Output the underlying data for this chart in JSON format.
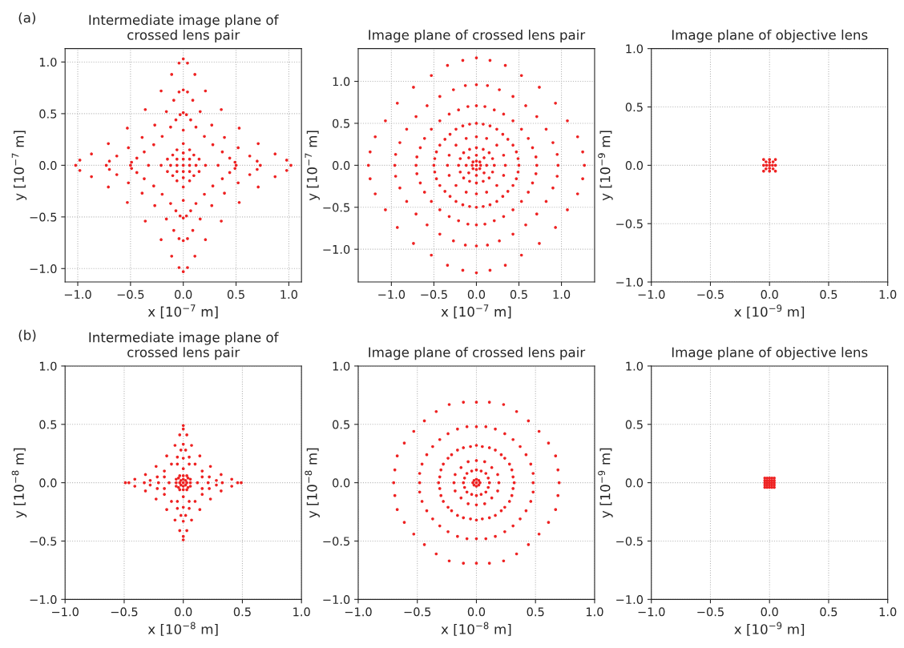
{
  "chart_data": [
    {
      "type": "scatter",
      "title": "Intermediate image plane of\ncrossed lens pair",
      "xlabel": "x [10$^{−7}$ m]",
      "ylabel": "y [10$^{−7}$ m]",
      "annotations": [
        "(a)"
      ],
      "grid": true,
      "marker": "circle",
      "xlim": [
        -1.12,
        1.12
      ],
      "ylim": [
        -1.13,
        1.13
      ],
      "xticks": [
        {
          "value": -1,
          "label": "−1.0"
        },
        {
          "value": -0.5,
          "label": "−0.5"
        },
        {
          "value": 0,
          "label": "0.0"
        },
        {
          "value": 0.5,
          "label": "0.5"
        },
        {
          "value": 1,
          "label": "1.0"
        }
      ],
      "yticks": [
        {
          "value": -1,
          "label": "−1.0"
        },
        {
          "value": -0.5,
          "label": "−0.5"
        },
        {
          "value": 0,
          "label": "0.0"
        },
        {
          "value": 0.5,
          "label": "0.5"
        },
        {
          "value": 1,
          "label": "1.0"
        }
      ],
      "series": [
        {
          "color": "#ee2222",
          "x": [
            0.04,
            0.11,
            0.21,
            0.04,
            0.09,
            0.36,
            0.16,
            0.03,
            0.27,
            0.07,
            0.53,
            0.12,
            0.39,
            0.2,
            0.71,
            0.52,
            0.28,
            0.87,
            0.63,
            0.98,
            0.7,
            0.49,
            0.44,
            0.37,
            0.1,
            0.06,
            0.15,
            0.06,
            -0.04,
            -0.11,
            -0.21,
            -0.04,
            -0.09,
            -0.36,
            -0.16,
            -0.03,
            -0.27,
            -0.07,
            -0.53,
            -0.12,
            -0.39,
            -0.2,
            -0.71,
            -0.52,
            -0.28,
            -0.87,
            -0.63,
            -0.98,
            -0.7,
            -0.49,
            -0.44,
            -0.37,
            -0.1,
            -0.06,
            -0.15,
            -0.06,
            -0.04,
            -0.11,
            -0.21,
            -0.04,
            -0.09,
            -0.36,
            -0.16,
            -0.03,
            -0.27,
            -0.07,
            -0.53,
            -0.12,
            -0.39,
            -0.2,
            -0.71,
            -0.52,
            -0.28,
            -0.87,
            -0.63,
            -0.98,
            -0.7,
            -0.49,
            -0.44,
            -0.37,
            -0.1,
            -0.06,
            -0.15,
            -0.06,
            0.04,
            0.11,
            0.21,
            0.04,
            0.09,
            0.36,
            0.16,
            0.03,
            0.27,
            0.07,
            0.53,
            0.12,
            0.39,
            0.2,
            0.71,
            0.52,
            0.28,
            0.87,
            0.63,
            0.98,
            0.7,
            0.49,
            0.44,
            0.37,
            0.1,
            0.06,
            0.15,
            0.06,
            0,
            0,
            0,
            0,
            0,
            0,
            0,
            1.02,
            0.73,
            0.5,
            0.33,
            0.21,
            0.12,
            0.06,
            0,
            0,
            0,
            0,
            0,
            0,
            0,
            -1.02,
            -0.73,
            -0.5,
            -0.33,
            -0.21,
            -0.12,
            -0.06,
            0
          ],
          "values": [
            0.99,
            0.88,
            0.72,
            0.71,
            0.63,
            0.54,
            0.52,
            0.49,
            0.39,
            0.44,
            0.36,
            0.37,
            0.27,
            0.28,
            0.21,
            0.17,
            0.2,
            0.11,
            0.09,
            0.05,
            0.04,
            0.03,
            0.07,
            0.13,
            0.1,
            0.06,
            0.06,
            0.15,
            0.99,
            0.88,
            0.72,
            0.71,
            0.63,
            0.54,
            0.52,
            0.49,
            0.39,
            0.44,
            0.36,
            0.37,
            0.27,
            0.28,
            0.21,
            0.17,
            0.2,
            0.11,
            0.09,
            0.05,
            0.04,
            0.03,
            0.07,
            0.13,
            0.1,
            0.06,
            0.06,
            0.15,
            -0.99,
            -0.88,
            -0.72,
            -0.71,
            -0.63,
            -0.54,
            -0.52,
            -0.49,
            -0.39,
            -0.44,
            -0.36,
            -0.37,
            -0.27,
            -0.28,
            -0.21,
            -0.17,
            -0.2,
            -0.11,
            -0.09,
            -0.05,
            -0.04,
            -0.03,
            -0.07,
            -0.13,
            -0.1,
            -0.06,
            -0.06,
            -0.15,
            -0.99,
            -0.88,
            -0.72,
            -0.71,
            -0.63,
            -0.54,
            -0.52,
            -0.49,
            -0.39,
            -0.44,
            -0.36,
            -0.37,
            -0.27,
            -0.28,
            -0.21,
            -0.17,
            -0.2,
            -0.11,
            -0.09,
            -0.05,
            -0.04,
            -0.03,
            -0.07,
            -0.13,
            -0.1,
            -0.06,
            -0.06,
            -0.15,
            1.03,
            0.73,
            0.51,
            0.34,
            0.21,
            0.12,
            0.06,
            0,
            0,
            0,
            0,
            0,
            0,
            0,
            -1.03,
            -0.73,
            -0.51,
            -0.34,
            -0.21,
            -0.12,
            -0.06,
            0,
            0,
            0,
            0,
            0,
            0,
            0,
            0
          ]
        }
      ]
    },
    {
      "type": "scatter",
      "title": "Image plane of crossed lens pair",
      "xlabel": "x [10$^{−7}$ m]",
      "ylabel": "y [10$^{−7}$ m]",
      "grid": true,
      "marker": "circle",
      "xlim": [
        -1.39,
        1.39
      ],
      "ylim": [
        -1.39,
        1.39
      ],
      "xticks": [
        {
          "value": -1,
          "label": "−1.0"
        },
        {
          "value": -0.5,
          "label": "−0.5"
        },
        {
          "value": 0,
          "label": "0.0"
        },
        {
          "value": 0.5,
          "label": "0.5"
        },
        {
          "value": 1,
          "label": "1.0"
        }
      ],
      "yticks": [
        {
          "value": -1,
          "label": "−1.0"
        },
        {
          "value": -0.5,
          "label": "−0.5"
        },
        {
          "value": 0,
          "label": "0.0"
        },
        {
          "value": 0.5,
          "label": "0.5"
        },
        {
          "value": 1,
          "label": "1.0"
        }
      ],
      "series": [
        {
          "color": "#ee2222",
          "x": [
            0.16,
            0.34,
            0.53,
            0.74,
            0.93,
            1.07,
            1.19,
            1.25,
            0.13,
            0.27,
            0.43,
            0.58,
            0.71,
            0.82,
            0.9,
            0.95,
            0.1,
            0.21,
            0.32,
            0.43,
            0.53,
            0.61,
            0.66,
            0.7,
            0.08,
            0.16,
            0.24,
            0.31,
            0.37,
            0.43,
            0.47,
            0.49,
            0.12,
            0.24,
            0.32,
            0.08,
            0.15,
            0.19,
            0.09,
            0.04,
            -0.16,
            -0.34,
            -0.53,
            -0.74,
            -0.93,
            -1.07,
            -1.19,
            -1.25,
            -0.13,
            -0.27,
            -0.43,
            -0.58,
            -0.71,
            -0.82,
            -0.9,
            -0.95,
            -0.1,
            -0.21,
            -0.32,
            -0.43,
            -0.53,
            -0.61,
            -0.66,
            -0.7,
            -0.08,
            -0.16,
            -0.24,
            -0.31,
            -0.37,
            -0.43,
            -0.47,
            -0.49,
            -0.12,
            -0.24,
            -0.32,
            -0.08,
            -0.15,
            -0.19,
            -0.09,
            -0.04,
            -0.16,
            -0.34,
            -0.53,
            -0.74,
            -0.93,
            -1.07,
            -1.19,
            -1.25,
            -0.13,
            -0.27,
            -0.43,
            -0.58,
            -0.71,
            -0.82,
            -0.9,
            -0.95,
            -0.1,
            -0.21,
            -0.32,
            -0.43,
            -0.53,
            -0.61,
            -0.66,
            -0.7,
            -0.08,
            -0.16,
            -0.24,
            -0.31,
            -0.37,
            -0.43,
            -0.47,
            -0.49,
            -0.12,
            -0.24,
            -0.32,
            -0.08,
            -0.15,
            -0.19,
            -0.09,
            -0.04,
            0.16,
            0.34,
            0.53,
            0.74,
            0.93,
            1.07,
            1.19,
            1.25,
            0.13,
            0.27,
            0.43,
            0.58,
            0.71,
            0.82,
            0.9,
            0.95,
            0.1,
            0.21,
            0.32,
            0.43,
            0.53,
            0.61,
            0.66,
            0.7,
            0.08,
            0.16,
            0.24,
            0.31,
            0.37,
            0.43,
            0.47,
            0.49,
            0.12,
            0.24,
            0.32,
            0.08,
            0.15,
            0.19,
            0.09,
            0.04,
            0,
            0,
            0,
            0,
            0,
            0,
            0,
            0,
            1.27,
            0.96,
            0.71,
            0.5,
            0.34,
            0.21,
            0.12,
            0.05,
            0,
            0,
            0,
            0,
            0,
            0,
            0,
            0,
            -1.27,
            -0.96,
            -0.71,
            -0.5,
            -0.34,
            -0.21,
            -0.12,
            -0.05,
            0
          ],
          "values": [
            1.25,
            1.19,
            1.07,
            0.93,
            0.74,
            0.53,
            0.34,
            0.16,
            0.95,
            0.9,
            0.82,
            0.71,
            0.58,
            0.43,
            0.27,
            0.13,
            0.7,
            0.66,
            0.61,
            0.53,
            0.43,
            0.32,
            0.21,
            0.1,
            0.49,
            0.47,
            0.43,
            0.37,
            0.31,
            0.24,
            0.16,
            0.08,
            0.32,
            0.24,
            0.12,
            0.19,
            0.15,
            0.08,
            0.09,
            0.04,
            1.25,
            1.19,
            1.07,
            0.93,
            0.74,
            0.53,
            0.34,
            0.16,
            0.95,
            0.9,
            0.82,
            0.71,
            0.58,
            0.43,
            0.27,
            0.13,
            0.7,
            0.66,
            0.61,
            0.53,
            0.43,
            0.32,
            0.21,
            0.1,
            0.49,
            0.47,
            0.43,
            0.37,
            0.31,
            0.24,
            0.16,
            0.08,
            0.32,
            0.24,
            0.12,
            0.19,
            0.15,
            0.08,
            0.09,
            0.04,
            -1.25,
            -1.19,
            -1.07,
            -0.93,
            -0.74,
            -0.53,
            -0.34,
            -0.16,
            -0.95,
            -0.9,
            -0.82,
            -0.71,
            -0.58,
            -0.43,
            -0.27,
            -0.13,
            -0.7,
            -0.66,
            -0.61,
            -0.53,
            -0.43,
            -0.32,
            -0.21,
            -0.1,
            -0.49,
            -0.47,
            -0.43,
            -0.37,
            -0.31,
            -0.24,
            -0.16,
            -0.08,
            -0.32,
            -0.24,
            -0.12,
            -0.19,
            -0.15,
            -0.08,
            -0.09,
            -0.04,
            -1.25,
            -1.19,
            -1.07,
            -0.93,
            -0.74,
            -0.53,
            -0.34,
            -0.16,
            -0.95,
            -0.9,
            -0.82,
            -0.71,
            -0.58,
            -0.43,
            -0.27,
            -0.13,
            -0.7,
            -0.66,
            -0.61,
            -0.53,
            -0.43,
            -0.32,
            -0.21,
            -0.1,
            -0.49,
            -0.47,
            -0.43,
            -0.37,
            -0.31,
            -0.24,
            -0.16,
            -0.08,
            -0.32,
            -0.24,
            -0.12,
            -0.19,
            -0.15,
            -0.08,
            -0.09,
            -0.04,
            1.28,
            0.96,
            0.71,
            0.5,
            0.34,
            0.21,
            0.12,
            0.05,
            0,
            0,
            0,
            0,
            0,
            0,
            0,
            0,
            -1.28,
            -0.96,
            -0.71,
            -0.5,
            -0.34,
            -0.21,
            -0.12,
            -0.05,
            0,
            0,
            0,
            0,
            0,
            0,
            0,
            0,
            0
          ]
        }
      ]
    },
    {
      "type": "scatter",
      "title": "Image plane of objective lens",
      "xlabel": "x [10$^{−9}$ m]",
      "ylabel": "y [10$^{−9}$ m]",
      "grid": true,
      "marker": "circle",
      "xlim": [
        -1,
        1
      ],
      "ylim": [
        -1,
        1
      ],
      "xticks": [
        {
          "value": -1,
          "label": "−1.0"
        },
        {
          "value": -0.5,
          "label": "−0.5"
        },
        {
          "value": 0,
          "label": "0.0"
        },
        {
          "value": 0.5,
          "label": "0.5"
        },
        {
          "value": 1,
          "label": "1.0"
        }
      ],
      "yticks": [
        {
          "value": -1,
          "label": "−1.0"
        },
        {
          "value": -0.5,
          "label": "−0.5"
        },
        {
          "value": 0,
          "label": "0.0"
        },
        {
          "value": 0.5,
          "label": "0.5"
        },
        {
          "value": 1,
          "label": "1.0"
        }
      ],
      "series": [
        {
          "color": "#ee2222",
          "x": [
            0.05,
            -0.05,
            -0.05,
            0.05,
            0.03,
            -0.03,
            -0.03,
            0.03,
            0,
            0,
            0.05,
            -0.05,
            0,
            0,
            0,
            0.025,
            -0.025
          ],
          "values": [
            0.05,
            0.05,
            -0.05,
            -0.05,
            0.03,
            0.03,
            -0.03,
            -0.03,
            0.05,
            -0.05,
            0,
            0,
            0,
            0.025,
            -0.025,
            0,
            0
          ]
        }
      ]
    },
    {
      "type": "scatter",
      "title": "Intermediate image plane of\ncrossed lens pair",
      "xlabel": "x [10$^{−8}$ m]",
      "ylabel": "y [10$^{−8}$ m]",
      "annotations": [
        "(b)"
      ],
      "grid": true,
      "marker": "circle",
      "xlim": [
        -1,
        1
      ],
      "ylim": [
        -1,
        1
      ],
      "xticks": [
        {
          "value": -1,
          "label": "−1.0"
        },
        {
          "value": -0.5,
          "label": "−0.5"
        },
        {
          "value": 0,
          "label": "0.0"
        },
        {
          "value": 0.5,
          "label": "0.5"
        },
        {
          "value": 1,
          "label": "1.0"
        }
      ],
      "yticks": [
        {
          "value": -1,
          "label": "−1.0"
        },
        {
          "value": -0.5,
          "label": "−0.5"
        },
        {
          "value": 0,
          "label": "0.0"
        },
        {
          "value": 0.5,
          "label": "0.5"
        },
        {
          "value": 1,
          "label": "1.0"
        }
      ],
      "series": [
        {
          "color": "#ee2222",
          "x": [
            0.03,
            0.07,
            0.02,
            0.14,
            0.05,
            0.23,
            0.1,
            0.32,
            0.16,
            0.41,
            0.28,
            0.16,
            0.06,
            0.03,
            0.04,
            0.02,
            0.22,
            0.05,
            -0.03,
            -0.07,
            -0.02,
            -0.14,
            -0.05,
            -0.23,
            -0.1,
            -0.32,
            -0.16,
            -0.41,
            -0.28,
            -0.16,
            -0.06,
            -0.03,
            -0.04,
            -0.02,
            -0.22,
            -0.05,
            -0.03,
            -0.07,
            -0.02,
            -0.14,
            -0.05,
            -0.23,
            -0.1,
            -0.32,
            -0.16,
            -0.41,
            -0.28,
            -0.16,
            -0.06,
            -0.03,
            -0.04,
            -0.02,
            -0.22,
            -0.05,
            0.03,
            0.07,
            0.02,
            0.14,
            0.05,
            0.23,
            0.1,
            0.32,
            0.16,
            0.41,
            0.28,
            0.16,
            0.06,
            0.03,
            0.04,
            0.02,
            0.22,
            0.05,
            0,
            0,
            0,
            0,
            0,
            0,
            0,
            0.49,
            0.46,
            0.33,
            0.21,
            0.12,
            0.06,
            0.03,
            0,
            0,
            0,
            0,
            0,
            0,
            0,
            -0.49,
            -0.46,
            -0.33,
            -0.21,
            -0.12,
            -0.06,
            -0.03,
            0
          ],
          "values": [
            0.41,
            0.32,
            0.28,
            0.23,
            0.22,
            0.14,
            0.16,
            0.07,
            0.1,
            0.03,
            0.02,
            0.05,
            0.03,
            0.06,
            0.04,
            0.02,
            0.05,
            0.16,
            0.41,
            0.32,
            0.28,
            0.23,
            0.22,
            0.14,
            0.16,
            0.07,
            0.1,
            0.03,
            0.02,
            0.05,
            0.03,
            0.06,
            0.04,
            0.02,
            0.05,
            0.16,
            -0.41,
            -0.32,
            -0.28,
            -0.23,
            -0.22,
            -0.14,
            -0.16,
            -0.07,
            -0.1,
            -0.03,
            -0.02,
            -0.05,
            -0.03,
            -0.06,
            -0.04,
            -0.02,
            -0.05,
            -0.16,
            -0.41,
            -0.32,
            -0.28,
            -0.23,
            -0.22,
            -0.14,
            -0.16,
            -0.07,
            -0.1,
            -0.03,
            -0.02,
            -0.05,
            -0.03,
            -0.06,
            -0.04,
            -0.02,
            -0.05,
            -0.16,
            0.49,
            0.46,
            0.33,
            0.21,
            0.12,
            0.06,
            0.03,
            0,
            0,
            0,
            0,
            0,
            0,
            0,
            -0.49,
            -0.46,
            -0.33,
            -0.21,
            -0.12,
            -0.06,
            -0.03,
            0,
            0,
            0,
            0,
            0,
            0,
            0,
            0
          ]
        }
      ]
    },
    {
      "type": "scatter",
      "title": "Image plane of crossed lens pair",
      "xlabel": "x [10$^{−8}$ m]",
      "ylabel": "y [10$^{−8}$ m]",
      "grid": true,
      "marker": "circle",
      "xlim": [
        -1,
        1
      ],
      "ylim": [
        -1,
        1
      ],
      "xticks": [
        {
          "value": -1,
          "label": "−1.0"
        },
        {
          "value": -0.5,
          "label": "−0.5"
        },
        {
          "value": 0,
          "label": "0.0"
        },
        {
          "value": 0.5,
          "label": "0.5"
        },
        {
          "value": 1,
          "label": "1.0"
        }
      ],
      "yticks": [
        {
          "value": -1,
          "label": "−1.0"
        },
        {
          "value": -0.5,
          "label": "−0.5"
        },
        {
          "value": 0,
          "label": "0.0"
        },
        {
          "value": 0.5,
          "label": "0.5"
        },
        {
          "value": 1,
          "label": "1.0"
        }
      ],
      "series": [
        {
          "color": "#ee2222",
          "x": [
            0.11,
            0.23,
            0.34,
            0.44,
            0.53,
            0.61,
            0.67,
            0.69,
            0.08,
            0.16,
            0.24,
            0.31,
            0.37,
            0.42,
            0.46,
            0.48,
            0.05,
            0.11,
            0.16,
            0.21,
            0.24,
            0.28,
            0.3,
            0.31,
            0.07,
            0.13,
            0.18,
            0.04,
            0.08,
            0.1,
            0.02,
            -0.11,
            -0.23,
            -0.34,
            -0.44,
            -0.53,
            -0.61,
            -0.67,
            -0.69,
            -0.08,
            -0.16,
            -0.24,
            -0.31,
            -0.37,
            -0.42,
            -0.46,
            -0.48,
            -0.05,
            -0.11,
            -0.16,
            -0.21,
            -0.24,
            -0.28,
            -0.3,
            -0.31,
            -0.07,
            -0.13,
            -0.18,
            -0.04,
            -0.08,
            -0.1,
            -0.02,
            -0.11,
            -0.23,
            -0.34,
            -0.44,
            -0.53,
            -0.61,
            -0.67,
            -0.69,
            -0.08,
            -0.16,
            -0.24,
            -0.31,
            -0.37,
            -0.42,
            -0.46,
            -0.48,
            -0.05,
            -0.11,
            -0.16,
            -0.21,
            -0.24,
            -0.28,
            -0.3,
            -0.31,
            -0.07,
            -0.13,
            -0.18,
            -0.04,
            -0.08,
            -0.1,
            -0.02,
            0.11,
            0.23,
            0.34,
            0.44,
            0.53,
            0.61,
            0.67,
            0.69,
            0.08,
            0.16,
            0.24,
            0.31,
            0.37,
            0.42,
            0.46,
            0.48,
            0.05,
            0.11,
            0.16,
            0.21,
            0.24,
            0.28,
            0.3,
            0.31,
            0.07,
            0.13,
            0.18,
            0.04,
            0.08,
            0.1,
            0.02,
            0,
            0,
            0,
            0,
            0,
            0,
            0.7,
            0.48,
            0.32,
            0.19,
            0.11,
            0.03,
            0,
            0,
            0,
            0,
            0,
            0,
            -0.7,
            -0.48,
            -0.32,
            -0.19,
            -0.11,
            -0.03,
            0
          ],
          "values": [
            0.69,
            0.67,
            0.61,
            0.53,
            0.44,
            0.34,
            0.23,
            0.11,
            0.48,
            0.46,
            0.42,
            0.37,
            0.31,
            0.24,
            0.16,
            0.08,
            0.31,
            0.3,
            0.28,
            0.24,
            0.21,
            0.16,
            0.11,
            0.05,
            0.18,
            0.13,
            0.07,
            0.1,
            0.08,
            0.04,
            0.02,
            0.69,
            0.67,
            0.61,
            0.53,
            0.44,
            0.34,
            0.23,
            0.11,
            0.48,
            0.46,
            0.42,
            0.37,
            0.31,
            0.24,
            0.16,
            0.08,
            0.31,
            0.3,
            0.28,
            0.24,
            0.21,
            0.16,
            0.11,
            0.05,
            0.18,
            0.13,
            0.07,
            0.1,
            0.08,
            0.04,
            0.02,
            -0.69,
            -0.67,
            -0.61,
            -0.53,
            -0.44,
            -0.34,
            -0.23,
            -0.11,
            -0.48,
            -0.46,
            -0.42,
            -0.37,
            -0.31,
            -0.24,
            -0.16,
            -0.08,
            -0.31,
            -0.3,
            -0.28,
            -0.24,
            -0.21,
            -0.16,
            -0.11,
            -0.05,
            -0.18,
            -0.13,
            -0.07,
            -0.1,
            -0.08,
            -0.04,
            -0.02,
            -0.69,
            -0.67,
            -0.61,
            -0.53,
            -0.44,
            -0.34,
            -0.23,
            -0.11,
            -0.48,
            -0.46,
            -0.42,
            -0.37,
            -0.31,
            -0.24,
            -0.16,
            -0.08,
            -0.31,
            -0.3,
            -0.28,
            -0.24,
            -0.21,
            -0.16,
            -0.11,
            -0.05,
            -0.18,
            -0.13,
            -0.07,
            -0.1,
            -0.08,
            -0.04,
            -0.02,
            0.69,
            0.48,
            0.32,
            0.19,
            0.11,
            0.03,
            0,
            0,
            0,
            0,
            0,
            0,
            -0.69,
            -0.48,
            -0.32,
            -0.19,
            -0.11,
            -0.03,
            0,
            0,
            0,
            0,
            0,
            0,
            0
          ]
        }
      ]
    },
    {
      "type": "scatter",
      "title": "Image plane of objective lens",
      "xlabel": "x [10$^{−9}$ m]",
      "ylabel": "y [10$^{−9}$ m]",
      "grid": true,
      "marker": "circle",
      "xlim": [
        -1,
        1
      ],
      "ylim": [
        -1,
        1
      ],
      "xticks": [
        {
          "value": -1,
          "label": "−1.0"
        },
        {
          "value": -0.5,
          "label": "−0.5"
        },
        {
          "value": 0,
          "label": "0.0"
        },
        {
          "value": 0.5,
          "label": "0.5"
        },
        {
          "value": 1,
          "label": "1.0"
        }
      ],
      "yticks": [
        {
          "value": -1,
          "label": "−1.0"
        },
        {
          "value": -0.5,
          "label": "−0.5"
        },
        {
          "value": 0,
          "label": "0.0"
        },
        {
          "value": 0.5,
          "label": "0.5"
        },
        {
          "value": 1,
          "label": "1.0"
        }
      ],
      "series": [
        {
          "color": "#ee2222",
          "x": [
            -0.04,
            -0.04,
            -0.04,
            -0.04,
            -0.04,
            -0.02,
            -0.02,
            -0.02,
            -0.02,
            -0.02,
            0,
            0,
            0,
            0,
            0,
            0.02,
            0.02,
            0.02,
            0.02,
            0.02,
            0.04,
            0.04,
            0.04,
            0.04,
            0.04
          ],
          "values": [
            -0.04,
            -0.02,
            0,
            0.02,
            0.04,
            -0.04,
            -0.02,
            0,
            0.02,
            0.04,
            -0.04,
            -0.02,
            0,
            0.02,
            0.04,
            -0.04,
            -0.02,
            0,
            0.02,
            0.04,
            -0.04,
            -0.02,
            0,
            0.02,
            0.04
          ]
        }
      ]
    }
  ]
}
